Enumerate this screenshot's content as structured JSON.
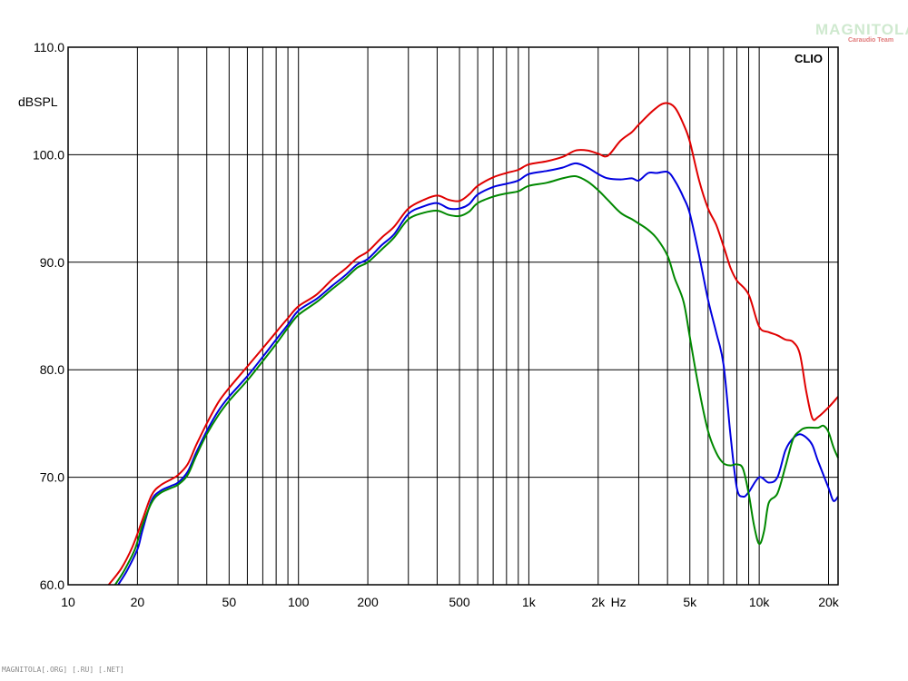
{
  "logo": {
    "name": "MAGNITOLA",
    "tag": "Caraudio Team"
  },
  "footer_text": "MAGNITOLA[.ORG] [.RU] [.NET]",
  "chart_data": {
    "type": "line",
    "brand_label": "CLIO",
    "title": "",
    "xlabel": "Hz",
    "ylabel": "dBSPL",
    "xscale": "log",
    "xlim": [
      10,
      22000
    ],
    "ylim": [
      60,
      110
    ],
    "grid": true,
    "y_ticks": [
      {
        "value": 60,
        "label": "60.0"
      },
      {
        "value": 70,
        "label": "70.0"
      },
      {
        "value": 80,
        "label": "80.0"
      },
      {
        "value": 90,
        "label": "90.0"
      },
      {
        "value": 100,
        "label": "100.0"
      },
      {
        "value": 110,
        "label": "110.0"
      }
    ],
    "x_ticks": [
      {
        "value": 10,
        "label": "10"
      },
      {
        "value": 20,
        "label": "20"
      },
      {
        "value": 50,
        "label": "50"
      },
      {
        "value": 100,
        "label": "100"
      },
      {
        "value": 200,
        "label": "200"
      },
      {
        "value": 500,
        "label": "500"
      },
      {
        "value": 1000,
        "label": "1k"
      },
      {
        "value": 2000,
        "label": "2k"
      },
      {
        "value": 5000,
        "label": "5k"
      },
      {
        "value": 10000,
        "label": "10k"
      },
      {
        "value": 20000,
        "label": "20k"
      }
    ],
    "x_gridlines": [
      20,
      30,
      40,
      50,
      60,
      70,
      80,
      90,
      100,
      200,
      300,
      400,
      500,
      600,
      700,
      800,
      900,
      1000,
      2000,
      3000,
      4000,
      5000,
      6000,
      7000,
      8000,
      9000,
      10000,
      20000
    ],
    "series": [
      {
        "color": "#e00000",
        "points": [
          [
            15,
            60
          ],
          [
            17,
            61.5
          ],
          [
            19,
            63.5
          ],
          [
            21,
            66
          ],
          [
            23,
            68.3
          ],
          [
            25,
            69.2
          ],
          [
            28,
            69.8
          ],
          [
            30,
            70.2
          ],
          [
            33,
            71.2
          ],
          [
            36,
            73
          ],
          [
            40,
            75
          ],
          [
            45,
            77
          ],
          [
            50,
            78.3
          ],
          [
            60,
            80.3
          ],
          [
            70,
            82
          ],
          [
            80,
            83.5
          ],
          [
            90,
            84.8
          ],
          [
            100,
            85.9
          ],
          [
            120,
            87
          ],
          [
            140,
            88.4
          ],
          [
            160,
            89.4
          ],
          [
            180,
            90.4
          ],
          [
            200,
            91
          ],
          [
            230,
            92.3
          ],
          [
            260,
            93.3
          ],
          [
            300,
            95
          ],
          [
            350,
            95.8
          ],
          [
            400,
            96.2
          ],
          [
            450,
            95.8
          ],
          [
            500,
            95.7
          ],
          [
            550,
            96.3
          ],
          [
            600,
            97.1
          ],
          [
            700,
            97.9
          ],
          [
            800,
            98.3
          ],
          [
            900,
            98.6
          ],
          [
            1000,
            99.1
          ],
          [
            1200,
            99.4
          ],
          [
            1400,
            99.8
          ],
          [
            1600,
            100.4
          ],
          [
            1800,
            100.4
          ],
          [
            2000,
            100.1
          ],
          [
            2200,
            99.9
          ],
          [
            2500,
            101.3
          ],
          [
            2800,
            102.1
          ],
          [
            3000,
            102.8
          ],
          [
            3500,
            104.2
          ],
          [
            3900,
            104.8
          ],
          [
            4300,
            104.4
          ],
          [
            4700,
            102.8
          ],
          [
            5000,
            101.2
          ],
          [
            5500,
            97.5
          ],
          [
            6000,
            95
          ],
          [
            6500,
            93.5
          ],
          [
            7000,
            91.5
          ],
          [
            7500,
            89.5
          ],
          [
            8000,
            88.3
          ],
          [
            9000,
            87
          ],
          [
            10000,
            84
          ],
          [
            11000,
            83.5
          ],
          [
            12000,
            83.2
          ],
          [
            13000,
            82.8
          ],
          [
            14000,
            82.6
          ],
          [
            15000,
            81.5
          ],
          [
            16000,
            78
          ],
          [
            17000,
            75.5
          ],
          [
            18000,
            75.6
          ],
          [
            20000,
            76.5
          ],
          [
            22000,
            77.5
          ]
        ]
      },
      {
        "color": "#0000e0",
        "points": [
          [
            16.5,
            60
          ],
          [
            18,
            61.3
          ],
          [
            20,
            63.3
          ],
          [
            21,
            65
          ],
          [
            23,
            67.8
          ],
          [
            25,
            68.7
          ],
          [
            28,
            69.2
          ],
          [
            30,
            69.5
          ],
          [
            33,
            70.5
          ],
          [
            36,
            72.3
          ],
          [
            40,
            74.3
          ],
          [
            45,
            76.2
          ],
          [
            50,
            77.5
          ],
          [
            60,
            79.4
          ],
          [
            70,
            81.2
          ],
          [
            80,
            82.8
          ],
          [
            90,
            84.2
          ],
          [
            100,
            85.5
          ],
          [
            120,
            86.6
          ],
          [
            140,
            87.8
          ],
          [
            160,
            88.8
          ],
          [
            180,
            89.8
          ],
          [
            200,
            90.3
          ],
          [
            230,
            91.6
          ],
          [
            260,
            92.6
          ],
          [
            300,
            94.5
          ],
          [
            350,
            95.2
          ],
          [
            400,
            95.5
          ],
          [
            450,
            95
          ],
          [
            500,
            95
          ],
          [
            550,
            95.4
          ],
          [
            600,
            96.3
          ],
          [
            700,
            97
          ],
          [
            800,
            97.3
          ],
          [
            900,
            97.6
          ],
          [
            1000,
            98.2
          ],
          [
            1200,
            98.5
          ],
          [
            1400,
            98.8
          ],
          [
            1600,
            99.2
          ],
          [
            1800,
            98.8
          ],
          [
            2000,
            98.2
          ],
          [
            2200,
            97.8
          ],
          [
            2500,
            97.7
          ],
          [
            2800,
            97.8
          ],
          [
            3000,
            97.6
          ],
          [
            3300,
            98.3
          ],
          [
            3600,
            98.3
          ],
          [
            4000,
            98.4
          ],
          [
            4300,
            97.6
          ],
          [
            4700,
            96
          ],
          [
            5000,
            94.5
          ],
          [
            5500,
            90.5
          ],
          [
            6000,
            86.5
          ],
          [
            6500,
            83.5
          ],
          [
            7000,
            80.5
          ],
          [
            7500,
            74
          ],
          [
            8000,
            69
          ],
          [
            8500,
            68.2
          ],
          [
            9000,
            68.6
          ],
          [
            10000,
            70
          ],
          [
            11000,
            69.5
          ],
          [
            12000,
            70
          ],
          [
            13000,
            72.5
          ],
          [
            14000,
            73.6
          ],
          [
            15000,
            74
          ],
          [
            16000,
            73.7
          ],
          [
            17000,
            73
          ],
          [
            18000,
            71.5
          ],
          [
            20000,
            69
          ],
          [
            21000,
            67.8
          ],
          [
            22000,
            68.2
          ]
        ]
      },
      {
        "color": "#008800",
        "points": [
          [
            16,
            60
          ],
          [
            17.5,
            61.3
          ],
          [
            19.5,
            63.3
          ],
          [
            21,
            65.5
          ],
          [
            23,
            67.6
          ],
          [
            25,
            68.5
          ],
          [
            28,
            69
          ],
          [
            30,
            69.3
          ],
          [
            33,
            70.2
          ],
          [
            36,
            72
          ],
          [
            40,
            74
          ],
          [
            45,
            75.8
          ],
          [
            50,
            77.1
          ],
          [
            60,
            79
          ],
          [
            70,
            80.8
          ],
          [
            80,
            82.4
          ],
          [
            90,
            83.9
          ],
          [
            100,
            85.1
          ],
          [
            120,
            86.3
          ],
          [
            140,
            87.5
          ],
          [
            160,
            88.5
          ],
          [
            180,
            89.5
          ],
          [
            200,
            90
          ],
          [
            230,
            91.2
          ],
          [
            260,
            92.3
          ],
          [
            300,
            94
          ],
          [
            350,
            94.6
          ],
          [
            400,
            94.8
          ],
          [
            450,
            94.4
          ],
          [
            500,
            94.3
          ],
          [
            550,
            94.7
          ],
          [
            600,
            95.5
          ],
          [
            700,
            96.1
          ],
          [
            800,
            96.4
          ],
          [
            900,
            96.6
          ],
          [
            1000,
            97.1
          ],
          [
            1200,
            97.4
          ],
          [
            1400,
            97.8
          ],
          [
            1600,
            98
          ],
          [
            1800,
            97.5
          ],
          [
            2000,
            96.7
          ],
          [
            2200,
            95.8
          ],
          [
            2500,
            94.6
          ],
          [
            2800,
            94
          ],
          [
            3000,
            93.6
          ],
          [
            3300,
            93
          ],
          [
            3600,
            92.2
          ],
          [
            4000,
            90.6
          ],
          [
            4300,
            88.5
          ],
          [
            4700,
            86.3
          ],
          [
            5000,
            83
          ],
          [
            5500,
            78
          ],
          [
            6000,
            74.3
          ],
          [
            6500,
            72.3
          ],
          [
            7000,
            71.3
          ],
          [
            7500,
            71.1
          ],
          [
            8000,
            71.2
          ],
          [
            8500,
            70.8
          ],
          [
            9000,
            68.5
          ],
          [
            9500,
            65.5
          ],
          [
            10000,
            63.8
          ],
          [
            10500,
            65
          ],
          [
            11000,
            67.6
          ],
          [
            12000,
            68.5
          ],
          [
            13000,
            71
          ],
          [
            14000,
            73.5
          ],
          [
            15000,
            74.3
          ],
          [
            16000,
            74.6
          ],
          [
            18000,
            74.6
          ],
          [
            19000,
            74.8
          ],
          [
            20000,
            74.2
          ],
          [
            21000,
            72.8
          ],
          [
            22000,
            71.8
          ]
        ]
      }
    ]
  }
}
